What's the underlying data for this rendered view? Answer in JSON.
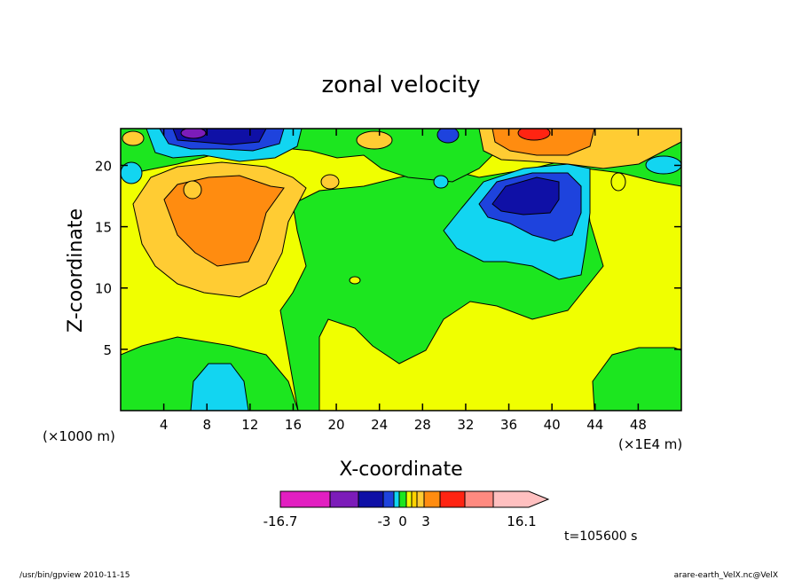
{
  "chart_data": {
    "type": "heatmap",
    "title": "zonal velocity",
    "xlabel": "X-coordinate",
    "ylabel": "Z-coordinate",
    "x_unit_label": "(×1E4 m)",
    "y_unit_label": "(×1000 m)",
    "xlim": [
      0,
      52
    ],
    "ylim": [
      0,
      23
    ],
    "x_ticks": [
      4,
      8,
      12,
      16,
      20,
      24,
      28,
      32,
      36,
      40,
      44,
      48
    ],
    "y_ticks": [
      5,
      10,
      15,
      20
    ],
    "colorbar": {
      "min_label": "-16.7",
      "max_label": "16.1",
      "labels": [
        "-3",
        "0",
        "3"
      ],
      "levels": [
        -16.7,
        -10,
        -5,
        -3,
        -2,
        -1,
        0,
        1,
        2,
        3,
        5,
        10,
        16.1
      ],
      "colors": [
        "#e21fc1",
        "#7c1cb9",
        "#0f10a6",
        "#1e43dd",
        "#12d5f1",
        "#1ce61f",
        "#f0ff00",
        "#ffd200",
        "#ffcc33",
        "#ff8c10",
        "#ff2412",
        "#ff8a80",
        "#ffc0c0"
      ]
    },
    "regions": [
      {
        "label": "negative core near top",
        "x": [
          6,
          11
        ],
        "z": [
          21.5,
          23
        ],
        "level": "-16.7 to -10",
        "color": "#7c1cb9"
      },
      {
        "label": "negative core upper right",
        "x": [
          33,
          40
        ],
        "z": [
          16,
          19
        ],
        "level": "-10 to -3",
        "color": "#0f10a6"
      },
      {
        "label": "positive core upper left",
        "x": [
          3,
          14
        ],
        "z": [
          11,
          20
        ],
        "level": "3 to 10",
        "color": "#ff8c10"
      },
      {
        "label": "positive core top right",
        "x": [
          33,
          42
        ],
        "z": [
          20,
          23
        ],
        "level": "10 to 16.1",
        "color": "#ff2412"
      },
      {
        "label": "negative patch bottom left",
        "x": [
          6,
          11
        ],
        "z": [
          0,
          4
        ],
        "level": "-5 to -3",
        "color": "#12d5f1"
      }
    ]
  },
  "footer": {
    "time": "t=105600 s",
    "left": "/usr/bin/gpview  2010-11-15",
    "right": "arare-earth_VelX.nc@VelX"
  }
}
